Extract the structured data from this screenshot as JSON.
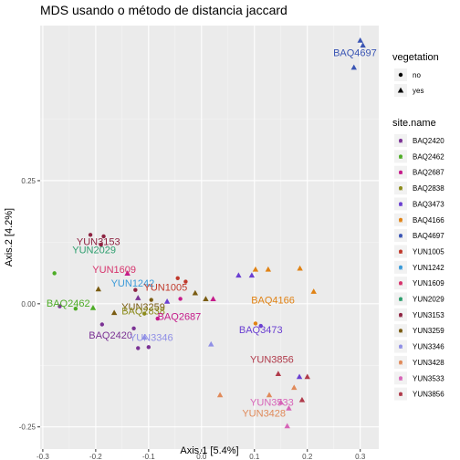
{
  "chart_data": {
    "type": "scatter",
    "title": "MDS usando o método de distancia jaccard",
    "xlabel": "Axis.1   [5.4%]",
    "ylabel": "Axis.2   [4.2%]",
    "xlim": [
      -0.305,
      0.335
    ],
    "ylim": [
      -0.295,
      0.565
    ],
    "x_ticks": [
      {
        "value": -0.3,
        "label": "-0.3"
      },
      {
        "value": -0.2,
        "label": "-0.2"
      },
      {
        "value": -0.1,
        "label": "-0.1"
      },
      {
        "value": 0.0,
        "label": "0.0"
      },
      {
        "value": 0.1,
        "label": "0.1"
      },
      {
        "value": 0.2,
        "label": "0.2"
      },
      {
        "value": 0.3,
        "label": "0.3"
      }
    ],
    "y_ticks": [
      {
        "value": -0.25,
        "label": "-0.25"
      },
      {
        "value": 0.0,
        "label": "0.00"
      },
      {
        "value": 0.25,
        "label": "0.25"
      }
    ],
    "grid": true,
    "legend_placement": "right",
    "legend_shape": {
      "title": "vegetation",
      "entries": [
        {
          "label": "no",
          "shape": "circle"
        },
        {
          "label": "yes",
          "shape": "triangle"
        }
      ]
    },
    "legend_color": {
      "title": "site.name",
      "entries": [
        {
          "label": "BAQ2420",
          "color": "#7b3294"
        },
        {
          "label": "BAQ2462",
          "color": "#4dac26"
        },
        {
          "label": "BAQ2687",
          "color": "#c51b8a"
        },
        {
          "label": "BAQ2838",
          "color": "#8c8c1c"
        },
        {
          "label": "BAQ3473",
          "color": "#6a3fd1"
        },
        {
          "label": "BAQ4166",
          "color": "#e08214"
        },
        {
          "label": "BAQ4697",
          "color": "#3a55b4"
        },
        {
          "label": "YUN1005",
          "color": "#c0392b"
        },
        {
          "label": "YUN1242",
          "color": "#3a9ad9"
        },
        {
          "label": "YUN1609",
          "color": "#d6336c"
        },
        {
          "label": "YUN2029",
          "color": "#2e9e6e"
        },
        {
          "label": "YUN3153",
          "color": "#8e2442"
        },
        {
          "label": "YUN3259",
          "color": "#7a5c12"
        },
        {
          "label": "YUN3346",
          "color": "#8f8fe6"
        },
        {
          "label": "YUN3428",
          "color": "#e08a5a"
        },
        {
          "label": "YUN3533",
          "color": "#d765b8"
        },
        {
          "label": "YUN3856",
          "color": "#b03a4a"
        }
      ]
    },
    "points": [
      {
        "x": 0.3,
        "y": 0.535,
        "shape": "triangle",
        "site": "BAQ4697"
      },
      {
        "x": 0.305,
        "y": 0.525,
        "shape": "triangle",
        "site": "BAQ4697"
      },
      {
        "x": 0.288,
        "y": 0.48,
        "shape": "triangle",
        "site": "BAQ4697"
      },
      {
        "x": -0.21,
        "y": 0.14,
        "shape": "circle",
        "site": "YUN3153"
      },
      {
        "x": -0.185,
        "y": 0.137,
        "shape": "circle",
        "site": "YUN3153"
      },
      {
        "x": -0.19,
        "y": 0.12,
        "shape": "circle",
        "site": "YUN3153"
      },
      {
        "x": -0.278,
        "y": 0.062,
        "shape": "circle",
        "site": "BAQ2462"
      },
      {
        "x": -0.195,
        "y": 0.03,
        "shape": "triangle",
        "site": "YUN3259"
      },
      {
        "x": -0.14,
        "y": 0.062,
        "shape": "triangle",
        "site": "BAQ2687"
      },
      {
        "x": -0.045,
        "y": 0.052,
        "shape": "circle",
        "site": "YUN1005"
      },
      {
        "x": -0.03,
        "y": 0.045,
        "shape": "circle",
        "site": "YUN1005"
      },
      {
        "x": -0.012,
        "y": 0.022,
        "shape": "triangle",
        "site": "YUN3259"
      },
      {
        "x": 0.022,
        "y": 0.01,
        "shape": "triangle",
        "site": "BAQ2687"
      },
      {
        "x": 0.008,
        "y": 0.01,
        "shape": "triangle",
        "site": "YUN3259"
      },
      {
        "x": -0.04,
        "y": 0.01,
        "shape": "circle",
        "site": "BAQ2687"
      },
      {
        "x": -0.125,
        "y": 0.028,
        "shape": "circle",
        "site": "YUN3153"
      },
      {
        "x": -0.12,
        "y": 0.012,
        "shape": "triangle",
        "site": "BAQ2420"
      },
      {
        "x": -0.095,
        "y": 0.008,
        "shape": "circle",
        "site": "YUN3259"
      },
      {
        "x": -0.065,
        "y": 0.005,
        "shape": "triangle",
        "site": "BAQ3473"
      },
      {
        "x": -0.268,
        "y": -0.005,
        "shape": "circle",
        "site": "BAQ2420"
      },
      {
        "x": -0.238,
        "y": -0.01,
        "shape": "circle",
        "site": "BAQ2462"
      },
      {
        "x": -0.205,
        "y": -0.008,
        "shape": "triangle",
        "site": "BAQ2462"
      },
      {
        "x": -0.165,
        "y": -0.018,
        "shape": "triangle",
        "site": "YUN3259"
      },
      {
        "x": -0.108,
        "y": -0.02,
        "shape": "circle",
        "site": "BAQ2838"
      },
      {
        "x": -0.083,
        "y": -0.03,
        "shape": "circle",
        "site": "BAQ2687"
      },
      {
        "x": -0.188,
        "y": -0.042,
        "shape": "circle",
        "site": "BAQ2420"
      },
      {
        "x": -0.128,
        "y": -0.05,
        "shape": "circle",
        "site": "BAQ2420"
      },
      {
        "x": -0.108,
        "y": -0.068,
        "shape": "triangle",
        "site": "YUN3346"
      },
      {
        "x": -0.12,
        "y": -0.09,
        "shape": "circle",
        "site": "BAQ2420"
      },
      {
        "x": -0.1,
        "y": -0.088,
        "shape": "circle",
        "site": "BAQ2420"
      },
      {
        "x": 0.018,
        "y": -0.082,
        "shape": "triangle",
        "site": "YUN3346"
      },
      {
        "x": 0.07,
        "y": 0.058,
        "shape": "triangle",
        "site": "BAQ3473"
      },
      {
        "x": 0.095,
        "y": 0.058,
        "shape": "triangle",
        "site": "BAQ3473"
      },
      {
        "x": 0.102,
        "y": 0.07,
        "shape": "triangle",
        "site": "BAQ4166"
      },
      {
        "x": 0.126,
        "y": 0.07,
        "shape": "triangle",
        "site": "BAQ4166"
      },
      {
        "x": 0.186,
        "y": 0.072,
        "shape": "triangle",
        "site": "BAQ4166"
      },
      {
        "x": 0.212,
        "y": 0.025,
        "shape": "triangle",
        "site": "BAQ4166"
      },
      {
        "x": 0.102,
        "y": -0.04,
        "shape": "circle",
        "site": "BAQ4166"
      },
      {
        "x": 0.112,
        "y": -0.045,
        "shape": "circle",
        "site": "BAQ3473"
      },
      {
        "x": 0.145,
        "y": -0.142,
        "shape": "triangle",
        "site": "YUN3856"
      },
      {
        "x": 0.185,
        "y": -0.148,
        "shape": "triangle",
        "site": "BAQ3473"
      },
      {
        "x": 0.2,
        "y": -0.148,
        "shape": "triangle",
        "site": "YUN3856"
      },
      {
        "x": 0.035,
        "y": -0.185,
        "shape": "triangle",
        "site": "YUN3428"
      },
      {
        "x": 0.128,
        "y": -0.185,
        "shape": "triangle",
        "site": "YUN3428"
      },
      {
        "x": 0.175,
        "y": -0.17,
        "shape": "triangle",
        "site": "YUN3428"
      },
      {
        "x": 0.19,
        "y": -0.195,
        "shape": "triangle",
        "site": "YUN3856"
      },
      {
        "x": 0.15,
        "y": -0.2,
        "shape": "triangle",
        "site": "YUN3533"
      },
      {
        "x": 0.165,
        "y": -0.212,
        "shape": "triangle",
        "site": "YUN3533"
      },
      {
        "x": 0.162,
        "y": -0.248,
        "shape": "triangle",
        "site": "YUN3533"
      }
    ],
    "point_labels": [
      {
        "text": "BAQ4697",
        "x": 0.29,
        "y": 0.51,
        "site": "BAQ4697"
      },
      {
        "text": "YUN3153",
        "x": -0.195,
        "y": 0.127,
        "site": "YUN3153"
      },
      {
        "text": "YUN2029",
        "x": -0.203,
        "y": 0.11,
        "site": "YUN2029"
      },
      {
        "text": "YUN1609",
        "x": -0.165,
        "y": 0.07,
        "site": "YUN1609"
      },
      {
        "text": "YUN1242",
        "x": -0.13,
        "y": 0.042,
        "site": "YUN1242"
      },
      {
        "text": "YUN1005",
        "x": -0.068,
        "y": 0.034,
        "site": "YUN1005"
      },
      {
        "text": "BAQ2462",
        "x": -0.252,
        "y": 0.002,
        "site": "BAQ2462"
      },
      {
        "text": "YUN3259",
        "x": -0.11,
        "y": -0.006,
        "site": "YUN3259"
      },
      {
        "text": "BAQ2838",
        "x": -0.11,
        "y": -0.014,
        "site": "BAQ2838"
      },
      {
        "text": "BAQ2687",
        "x": -0.042,
        "y": -0.025,
        "site": "BAQ2687"
      },
      {
        "text": "BAQ4166",
        "x": 0.135,
        "y": 0.008,
        "site": "BAQ4166"
      },
      {
        "text": "BAQ3473",
        "x": 0.112,
        "y": -0.052,
        "site": "BAQ3473"
      },
      {
        "text": "BAQ2420",
        "x": -0.172,
        "y": -0.063,
        "site": "BAQ2420"
      },
      {
        "text": "YUN3346",
        "x": -0.095,
        "y": -0.068,
        "site": "YUN3346"
      },
      {
        "text": "YUN3856",
        "x": 0.133,
        "y": -0.112,
        "site": "YUN3856"
      },
      {
        "text": "YUN3533",
        "x": 0.133,
        "y": -0.2,
        "site": "YUN3533"
      },
      {
        "text": "YUN3428",
        "x": 0.118,
        "y": -0.222,
        "site": "YUN3428"
      }
    ]
  }
}
